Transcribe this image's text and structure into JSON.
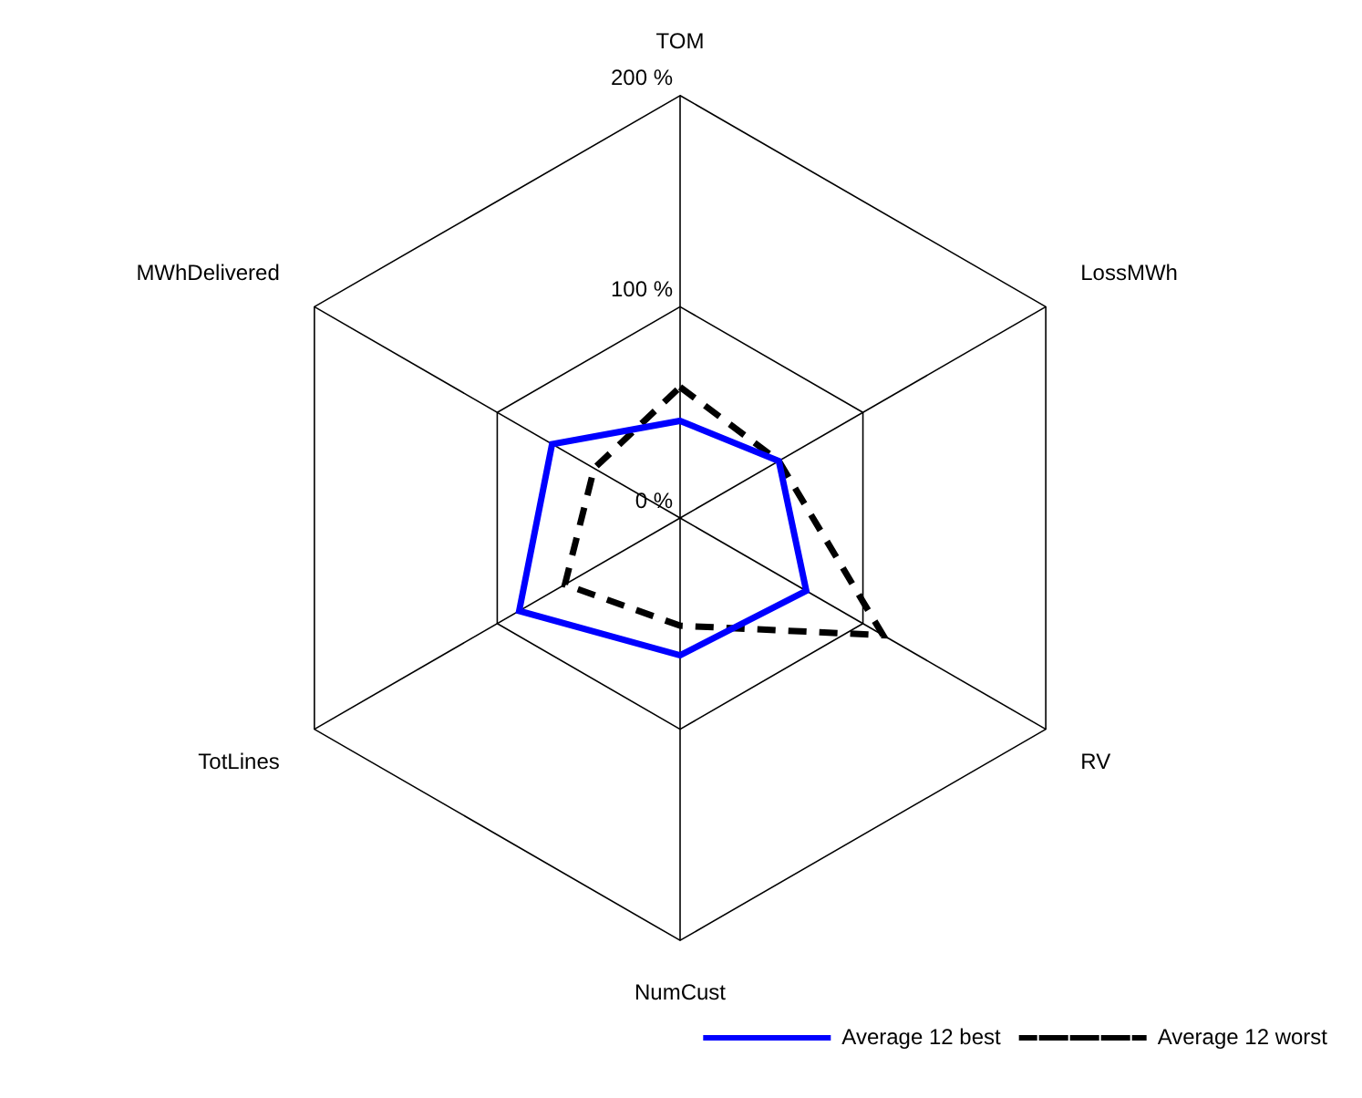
{
  "chart_data": {
    "type": "radar",
    "categories": [
      "TOM",
      "LossMWh",
      "RV",
      "NumCust",
      "TotLines",
      "MWhDelivered"
    ],
    "ylim": [
      0,
      200
    ],
    "yticks": [
      {
        "value": 0,
        "label": "0 %"
      },
      {
        "value": 100,
        "label": "100 %"
      },
      {
        "value": 200,
        "label": "200 %"
      }
    ],
    "grid": true,
    "legend": "bottom right",
    "marker": "none",
    "series": [
      {
        "name": "Average 12 best",
        "color": "#0000ff",
        "line_style": "solid",
        "values": [
          46,
          54,
          69,
          65,
          88,
          70
        ]
      },
      {
        "name": "Average 12 worst",
        "color": "#000000",
        "line_style": "dashed",
        "values": [
          62,
          54,
          111,
          51,
          63,
          47
        ]
      }
    ]
  }
}
